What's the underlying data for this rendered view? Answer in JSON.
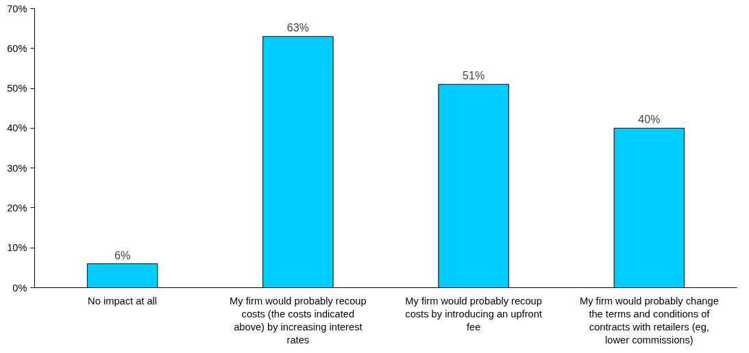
{
  "chart_data": {
    "type": "bar",
    "categories": [
      "No impact at all",
      "My firm would probably recoup costs (the costs indicated above) by increasing interest rates",
      "My firm would probably recoup costs by introducing an upfront fee",
      "My firm would probably change the terms and conditions of contracts with retailers (eg, lower commissions)"
    ],
    "values": [
      6,
      63,
      51,
      40
    ],
    "value_labels": [
      "6%",
      "63%",
      "51%",
      "40%"
    ],
    "color": "#00ccff",
    "ylim": [
      0,
      70
    ],
    "yticks": [
      {
        "value": 0,
        "label": "0%"
      },
      {
        "value": 10,
        "label": "10%"
      },
      {
        "value": 20,
        "label": "20%"
      },
      {
        "value": 30,
        "label": "30%"
      },
      {
        "value": 40,
        "label": "40%"
      },
      {
        "value": 50,
        "label": "50%"
      },
      {
        "value": 60,
        "label": "60%"
      },
      {
        "value": 70,
        "label": "70%"
      }
    ],
    "grid": false
  }
}
